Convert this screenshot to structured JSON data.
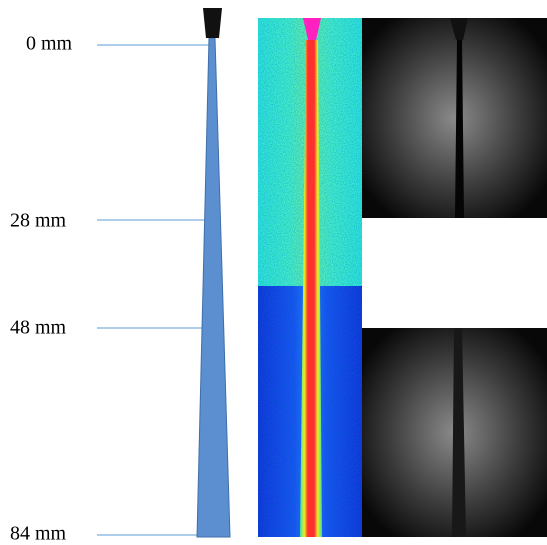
{
  "scale_labels": [
    "0 mm",
    "28 mm",
    "48 mm",
    "84 mm"
  ]
}
